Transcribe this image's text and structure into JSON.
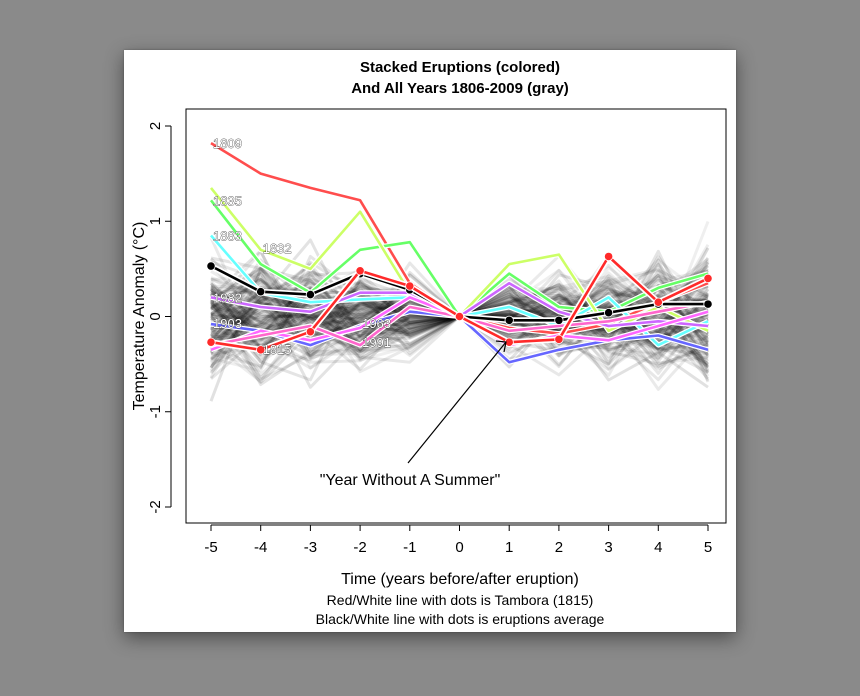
{
  "chart_data": {
    "type": "line",
    "title": [
      "Stacked Eruptions (colored)",
      "And All Years 1806-2009 (gray)"
    ],
    "xlabel": "Time (years before/after eruption)",
    "ylabel": "Temperature Anomaly (°C)",
    "captions": [
      "Red/White line with dots is Tambora (1815)",
      "Black/White line with dots is eruptions average"
    ],
    "annotation": "\"Year Without A Summer\"",
    "x": [
      -5,
      -4,
      -3,
      -2,
      -1,
      0,
      1,
      2,
      3,
      4,
      5
    ],
    "x_ticks": [
      "-5",
      "-4",
      "-3",
      "-2",
      "-1",
      "0",
      "1",
      "2",
      "3",
      "4",
      "5"
    ],
    "y_ticks": [
      "-2",
      "-1",
      "0",
      "1",
      "2"
    ],
    "xlim": [
      -5,
      5
    ],
    "ylim": [
      -2,
      2
    ],
    "gray_background": {
      "label": "All Years 1806-2009",
      "color": "#000000",
      "n_lines": 150
    },
    "series": [
      {
        "name": "1809",
        "color": "#ff4d4d",
        "values": [
          1.82,
          1.5,
          1.35,
          1.22,
          0.35,
          0,
          -0.12,
          -0.18,
          -0.08,
          0.15,
          0.35
        ]
      },
      {
        "name": "1835",
        "color": "#66ff66",
        "values": [
          1.22,
          0.55,
          0.25,
          0.7,
          0.78,
          0,
          0.45,
          0.1,
          0.05,
          0.3,
          0.45
        ]
      },
      {
        "name": "1883",
        "color": "#66ffff",
        "values": [
          0.85,
          0.25,
          0.15,
          0.18,
          0.2,
          0,
          0.1,
          -0.1,
          0.2,
          -0.3,
          -0.05
        ]
      },
      {
        "name": "1832",
        "color": "#ccff66",
        "values": [
          1.35,
          0.7,
          0.5,
          1.1,
          0.25,
          0,
          0.55,
          0.65,
          -0.15,
          0.1,
          -0.15
        ]
      },
      {
        "name": "1982",
        "color": "#cc66ff",
        "values": [
          0.2,
          0.1,
          0.05,
          0.25,
          0.25,
          0,
          0.35,
          0.05,
          -0.1,
          -0.05,
          -0.1
        ]
      },
      {
        "name": "1903",
        "color": "#6666ff",
        "values": [
          -0.08,
          -0.15,
          -0.3,
          -0.1,
          0.05,
          0,
          -0.48,
          -0.35,
          -0.25,
          -0.2,
          -0.35
        ]
      },
      {
        "name": "1963",
        "color": "#ff66ff",
        "values": [
          -0.35,
          -0.15,
          -0.25,
          -0.12,
          0.2,
          0,
          -0.3,
          -0.2,
          -0.25,
          -0.1,
          0.05
        ]
      },
      {
        "name": "1991",
        "color": "#ff66cc",
        "values": [
          -0.3,
          -0.2,
          -0.1,
          -0.3,
          0.1,
          0,
          -0.15,
          -0.1,
          -0.05,
          0.05,
          0.15
        ]
      }
    ],
    "tambora": {
      "name": "1815",
      "color": "#ff2a2a",
      "values": [
        -0.27,
        -0.35,
        -0.16,
        0.48,
        0.32,
        0,
        -0.27,
        -0.24,
        0.63,
        0.15,
        0.4
      ]
    },
    "average": {
      "label": "eruptions average",
      "color": "#000000",
      "values": [
        0.53,
        0.26,
        0.23,
        0.45,
        0.28,
        0,
        -0.04,
        -0.04,
        0.04,
        0.13,
        0.13
      ]
    },
    "label_positions_year": {
      "1809": [
        -5,
        1.82
      ],
      "1835": [
        -5,
        1.22
      ],
      "1883": [
        -5,
        0.85
      ],
      "1832": [
        -4,
        0.72
      ],
      "1982": [
        -5,
        0.2
      ],
      "1903": [
        -5,
        -0.07
      ],
      "1815": [
        -4,
        -0.34
      ],
      "1963": [
        -2,
        -0.07
      ],
      "1991": [
        -2,
        -0.27
      ]
    },
    "grid": false,
    "legend": "none"
  }
}
